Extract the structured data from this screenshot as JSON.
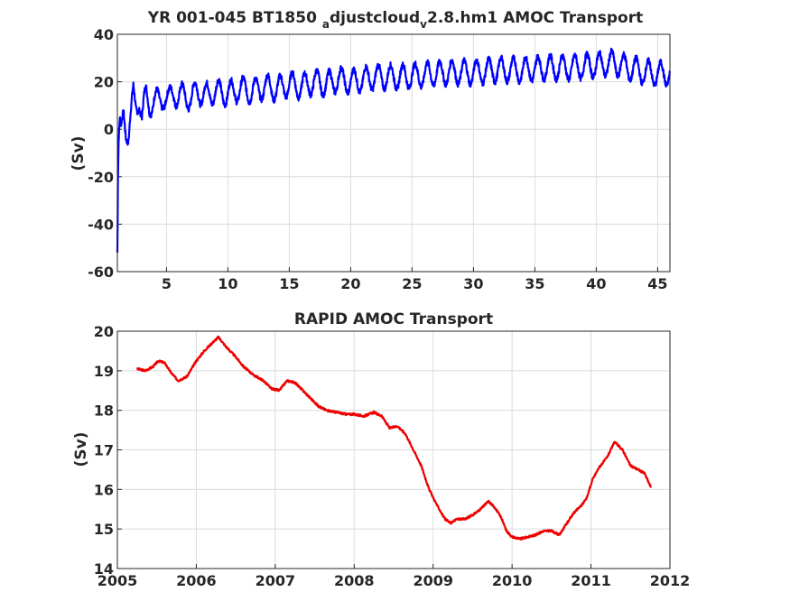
{
  "chart_data": [
    {
      "type": "line",
      "title": "YR 001-045 BT1850",
      "title_sub1": "a",
      "title_mid": "djustcloud",
      "title_sub2": "v",
      "title_end": "2.8.hm1 AMOC Transport",
      "xlabel": "",
      "ylabel": "(Sv)",
      "xlim": [
        1,
        46
      ],
      "ylim": [
        -60,
        40
      ],
      "xticks": [
        "5",
        "10",
        "15",
        "20",
        "25",
        "30",
        "35",
        "40",
        "45"
      ],
      "yticks": [
        "40",
        "20",
        "0",
        "-20",
        "-40",
        "-60"
      ],
      "grid": true,
      "line_color": "#0000ff",
      "series": [
        {
          "x": [
            1.0,
            1.05,
            1.1,
            1.2,
            1.3,
            1.5,
            1.7,
            1.9,
            2.1,
            2.3,
            2.5,
            2.8,
            3.0,
            3.3,
            3.6,
            4.0,
            4.4,
            4.8,
            5.2,
            5.6,
            6.0,
            6.5,
            7.0,
            7.5,
            8.0,
            9.0,
            10.0,
            11.0,
            12.0,
            13.0,
            14.0,
            15.0,
            16.0,
            17.0,
            18.0,
            19.0,
            20.0,
            22.0,
            24.0,
            26.0,
            28.0,
            30.0,
            32.0,
            34.0,
            36.0,
            38.0,
            40.0,
            41.5,
            42.5,
            44.0,
            45.5,
            46.0
          ],
          "y": [
            -52,
            -20,
            -5,
            5,
            2,
            8,
            0,
            -3,
            6,
            15,
            9,
            12,
            5,
            14,
            10,
            13,
            11,
            14,
            12,
            16,
            13,
            15,
            12,
            17,
            14,
            16,
            15,
            17,
            16,
            18,
            17,
            19,
            18,
            20,
            19,
            21,
            20,
            22,
            22,
            23,
            24,
            24,
            25,
            25,
            26,
            26,
            27,
            28,
            26,
            24,
            23,
            24
          ],
          "seasonal_amplitude": 5
        }
      ]
    },
    {
      "type": "line",
      "title": "RAPID AMOC Transport",
      "xlabel": "",
      "ylabel": "(Sv)",
      "xlim": [
        2005,
        2012
      ],
      "ylim": [
        14,
        20
      ],
      "xticks": [
        "2005",
        "2006",
        "2007",
        "2008",
        "2009",
        "2010",
        "2011",
        "2012"
      ],
      "yticks": [
        "20",
        "19",
        "18",
        "17",
        "16",
        "15",
        "14"
      ],
      "grid": true,
      "line_color": "#ee0000",
      "series": [
        {
          "x": [
            2005.25,
            2005.35,
            2005.45,
            2005.52,
            2005.6,
            2005.68,
            2005.77,
            2005.88,
            2006.0,
            2006.1,
            2006.2,
            2006.28,
            2006.38,
            2006.5,
            2006.6,
            2006.72,
            2006.85,
            2006.95,
            2007.05,
            2007.15,
            2007.25,
            2007.35,
            2007.45,
            2007.55,
            2007.65,
            2007.78,
            2007.9,
            2008.0,
            2008.12,
            2008.25,
            2008.35,
            2008.45,
            2008.55,
            2008.65,
            2008.75,
            2008.85,
            2008.95,
            2009.05,
            2009.15,
            2009.22,
            2009.3,
            2009.4,
            2009.5,
            2009.6,
            2009.7,
            2009.78,
            2009.86,
            2009.93,
            2010.0,
            2010.1,
            2010.2,
            2010.3,
            2010.4,
            2010.5,
            2010.6,
            2010.68,
            2010.78,
            2010.88,
            2010.95,
            2011.02,
            2011.1,
            2011.2,
            2011.3,
            2011.4,
            2011.5,
            2011.6,
            2011.68,
            2011.76
          ],
          "y": [
            19.05,
            19.0,
            19.1,
            19.25,
            19.2,
            18.95,
            18.75,
            18.85,
            19.25,
            19.5,
            19.7,
            19.85,
            19.6,
            19.35,
            19.1,
            18.9,
            18.75,
            18.55,
            18.5,
            18.75,
            18.7,
            18.5,
            18.3,
            18.1,
            18.0,
            17.95,
            17.9,
            17.9,
            17.85,
            17.95,
            17.85,
            17.55,
            17.6,
            17.4,
            17.0,
            16.6,
            16.0,
            15.6,
            15.25,
            15.15,
            15.25,
            15.25,
            15.35,
            15.5,
            15.7,
            15.55,
            15.3,
            14.95,
            14.8,
            14.75,
            14.8,
            14.85,
            14.95,
            14.95,
            14.85,
            15.1,
            15.4,
            15.6,
            15.8,
            16.25,
            16.55,
            16.8,
            17.2,
            17.0,
            16.6,
            16.5,
            16.4,
            16.05
          ]
        }
      ]
    }
  ]
}
